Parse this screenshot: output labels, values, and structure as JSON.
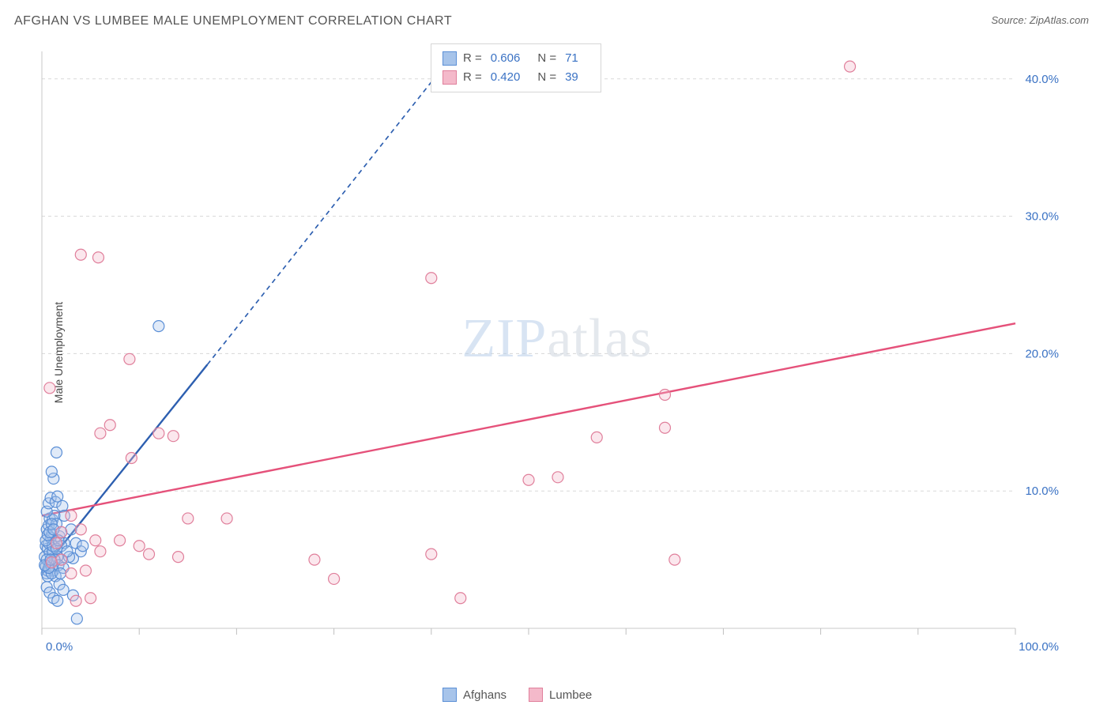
{
  "title": "AFGHAN VS LUMBEE MALE UNEMPLOYMENT CORRELATION CHART",
  "source_label": "Source: ZipAtlas.com",
  "ylabel": "Male Unemployment",
  "watermark": {
    "bold": "ZIP",
    "light": "atlas"
  },
  "chart": {
    "type": "scatter",
    "background_color": "#ffffff",
    "grid_color": "#d8d8d8",
    "axis_color": "#c8c8c8",
    "xlim": [
      0,
      100
    ],
    "ylim": [
      0,
      42
    ],
    "x_ticks": [
      0,
      10,
      20,
      30,
      40,
      50,
      60,
      70,
      80,
      90,
      100
    ],
    "x_tick_labels_shown": {
      "0": "0.0%",
      "100": "100.0%"
    },
    "y_ticks": [
      10,
      20,
      30,
      40
    ],
    "y_tick_labels": [
      "10.0%",
      "20.0%",
      "30.0%",
      "40.0%"
    ],
    "tick_label_color": "#3a72c4",
    "tick_label_fontsize": 15,
    "marker_radius": 7,
    "marker_stroke_width": 1.2,
    "marker_fill_opacity": 0.35,
    "trend_line_width": 2.4,
    "trend_dash_pattern": "6 5",
    "series": [
      {
        "name": "Afghans",
        "color_stroke": "#5b8fd6",
        "color_fill": "#a7c4ea",
        "trend_color": "#2d5fb0",
        "trend_solid": {
          "x1": 0,
          "y1": 4.2,
          "x2": 17,
          "y2": 19.2
        },
        "trend_dashed": {
          "x1": 17,
          "y1": 19.2,
          "x2": 42.5,
          "y2": 42
        },
        "R": "0.606",
        "N": "71",
        "points": [
          [
            0.3,
            5.2
          ],
          [
            0.4,
            6.0
          ],
          [
            0.5,
            4.0
          ],
          [
            0.6,
            5.8
          ],
          [
            0.7,
            6.2
          ],
          [
            0.8,
            5.5
          ],
          [
            0.5,
            7.2
          ],
          [
            0.7,
            7.5
          ],
          [
            0.8,
            8.0
          ],
          [
            1.0,
            6.8
          ],
          [
            1.1,
            5.6
          ],
          [
            0.4,
            4.5
          ],
          [
            0.6,
            4.2
          ],
          [
            0.8,
            4.8
          ],
          [
            1.0,
            4.5
          ],
          [
            1.2,
            4.2
          ],
          [
            1.4,
            3.8
          ],
          [
            1.1,
            7.9
          ],
          [
            1.3,
            8.2
          ],
          [
            1.5,
            7.6
          ],
          [
            1.8,
            6.7
          ],
          [
            2.0,
            5.0
          ],
          [
            1.6,
            5.2
          ],
          [
            0.5,
            8.5
          ],
          [
            0.7,
            9.1
          ],
          [
            0.9,
            9.5
          ],
          [
            1.2,
            10.9
          ],
          [
            1.0,
            11.4
          ],
          [
            1.4,
            9.2
          ],
          [
            1.6,
            9.6
          ],
          [
            2.0,
            7.0
          ],
          [
            2.3,
            6.2
          ],
          [
            3.2,
            5.1
          ],
          [
            1.8,
            3.2
          ],
          [
            2.2,
            2.8
          ],
          [
            3.2,
            2.4
          ],
          [
            3.6,
            0.7
          ],
          [
            0.5,
            3.0
          ],
          [
            0.8,
            2.6
          ],
          [
            1.2,
            2.2
          ],
          [
            1.6,
            2.0
          ],
          [
            1.5,
            12.8
          ],
          [
            2.1,
            8.9
          ],
          [
            2.3,
            8.2
          ],
          [
            0.6,
            3.8
          ],
          [
            3.0,
            7.2
          ],
          [
            3.5,
            6.2
          ],
          [
            4.0,
            5.6
          ],
          [
            4.2,
            6.0
          ],
          [
            1.0,
            4.0
          ],
          [
            1.3,
            5.0
          ],
          [
            1.7,
            4.6
          ],
          [
            0.9,
            6.6
          ],
          [
            1.1,
            6.0
          ],
          [
            2.8,
            5.2
          ],
          [
            0.5,
            5.0
          ],
          [
            0.7,
            4.4
          ],
          [
            2.2,
            4.4
          ],
          [
            1.9,
            4.0
          ],
          [
            0.4,
            6.4
          ],
          [
            0.6,
            6.8
          ],
          [
            0.8,
            7.0
          ],
          [
            1.0,
            7.6
          ],
          [
            1.2,
            7.2
          ],
          [
            12.0,
            22.0
          ],
          [
            2.0,
            6.0
          ],
          [
            2.6,
            5.6
          ],
          [
            0.3,
            4.6
          ],
          [
            1.5,
            5.8
          ],
          [
            1.7,
            6.4
          ],
          [
            0.9,
            5.0
          ]
        ]
      },
      {
        "name": "Lumbee",
        "color_stroke": "#e07f9b",
        "color_fill": "#f4b9ca",
        "trend_color": "#e5517a",
        "trend_solid": {
          "x1": 0,
          "y1": 8.2,
          "x2": 100,
          "y2": 22.2
        },
        "trend_dashed": null,
        "R": "0.420",
        "N": "39",
        "points": [
          [
            0.8,
            17.5
          ],
          [
            4.0,
            27.2
          ],
          [
            5.8,
            27.0
          ],
          [
            9.0,
            19.6
          ],
          [
            7.0,
            14.8
          ],
          [
            9.2,
            12.4
          ],
          [
            6.0,
            14.2
          ],
          [
            12.0,
            14.2
          ],
          [
            13.5,
            14.0
          ],
          [
            5.5,
            6.4
          ],
          [
            3.0,
            8.2
          ],
          [
            6.0,
            5.6
          ],
          [
            15.0,
            8.0
          ],
          [
            19.0,
            8.0
          ],
          [
            11.0,
            5.4
          ],
          [
            14.0,
            5.2
          ],
          [
            28.0,
            5.0
          ],
          [
            30.0,
            3.6
          ],
          [
            40.0,
            25.5
          ],
          [
            40.0,
            5.4
          ],
          [
            50.0,
            10.8
          ],
          [
            53.0,
            11.0
          ],
          [
            57.0,
            13.9
          ],
          [
            43.0,
            2.2
          ],
          [
            64.0,
            14.6
          ],
          [
            64.0,
            17.0
          ],
          [
            65.0,
            5.0
          ],
          [
            83.0,
            40.9
          ],
          [
            3.5,
            2.0
          ],
          [
            5.0,
            2.2
          ],
          [
            2.0,
            7.0
          ],
          [
            4.0,
            7.2
          ],
          [
            8.0,
            6.4
          ],
          [
            10.0,
            6.0
          ],
          [
            3.0,
            4.0
          ],
          [
            4.5,
            4.2
          ],
          [
            2.0,
            5.0
          ],
          [
            1.5,
            6.2
          ],
          [
            1.0,
            4.8
          ]
        ]
      }
    ]
  },
  "legend_top": {
    "r_label": "R =",
    "n_label": "N =",
    "rows": [
      {
        "swatch_fill": "#a7c4ea",
        "swatch_stroke": "#5b8fd6",
        "R": "0.606",
        "N": "71"
      },
      {
        "swatch_fill": "#f4b9ca",
        "swatch_stroke": "#e07f9b",
        "R": "0.420",
        "N": "39"
      }
    ]
  },
  "legend_bottom": {
    "items": [
      {
        "swatch_fill": "#a7c4ea",
        "swatch_stroke": "#5b8fd6",
        "label": "Afghans"
      },
      {
        "swatch_fill": "#f4b9ca",
        "swatch_stroke": "#e07f9b",
        "label": "Lumbee"
      }
    ]
  }
}
